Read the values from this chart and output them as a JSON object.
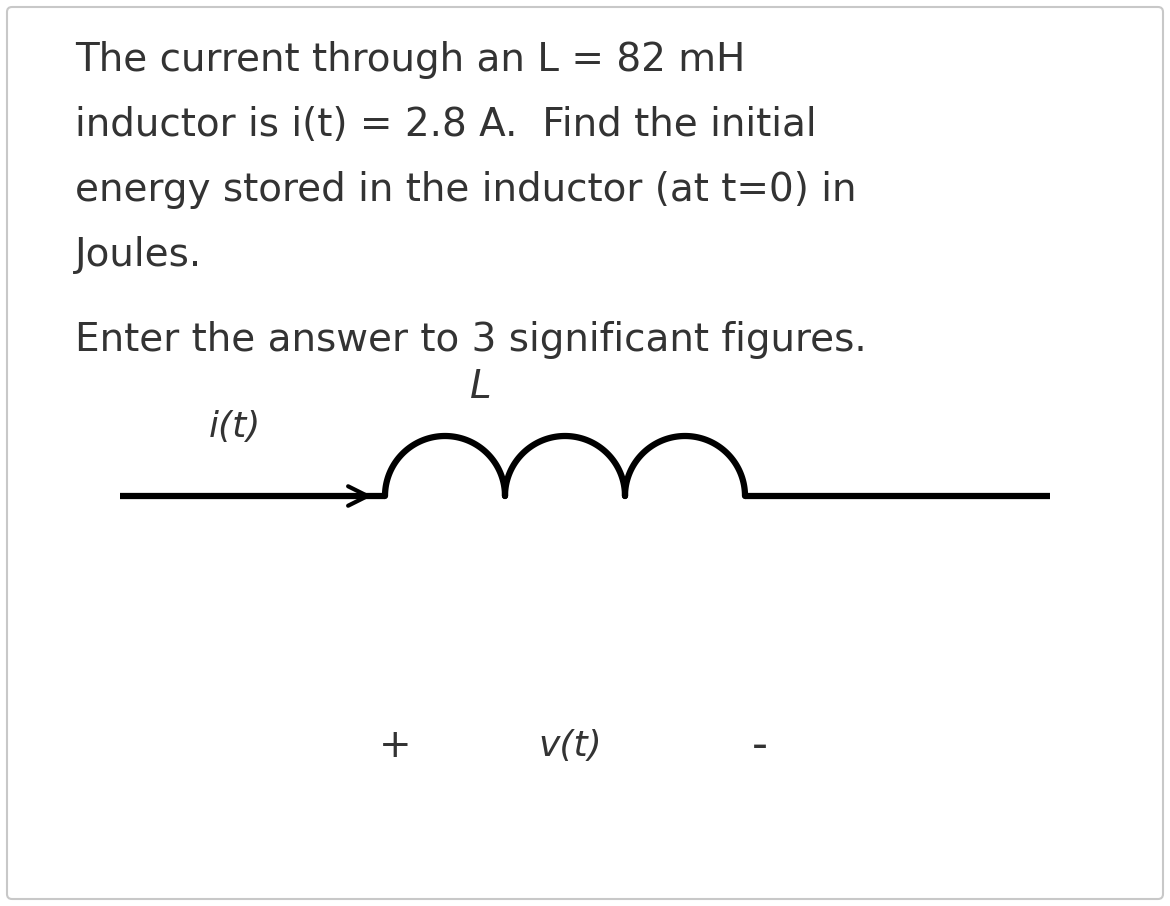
{
  "background_color": "#ffffff",
  "border_color": "#c8c8c8",
  "text_color": "#333333",
  "line1": "The current through an L = 82 mH",
  "line2": "inductor is i(t) = 2.8 A.  Find the initial",
  "line3": "energy stored in the inductor (at t=0) in",
  "line4": "Joules.",
  "line5": "Enter the answer to 3 significant figures.",
  "label_it": "i(t)",
  "label_L": "L",
  "label_vt": "v(t)",
  "label_plus": "+",
  "label_minus": "-",
  "font_size_text": 28,
  "font_size_labels": 26,
  "font_family": "DejaVu Sans"
}
